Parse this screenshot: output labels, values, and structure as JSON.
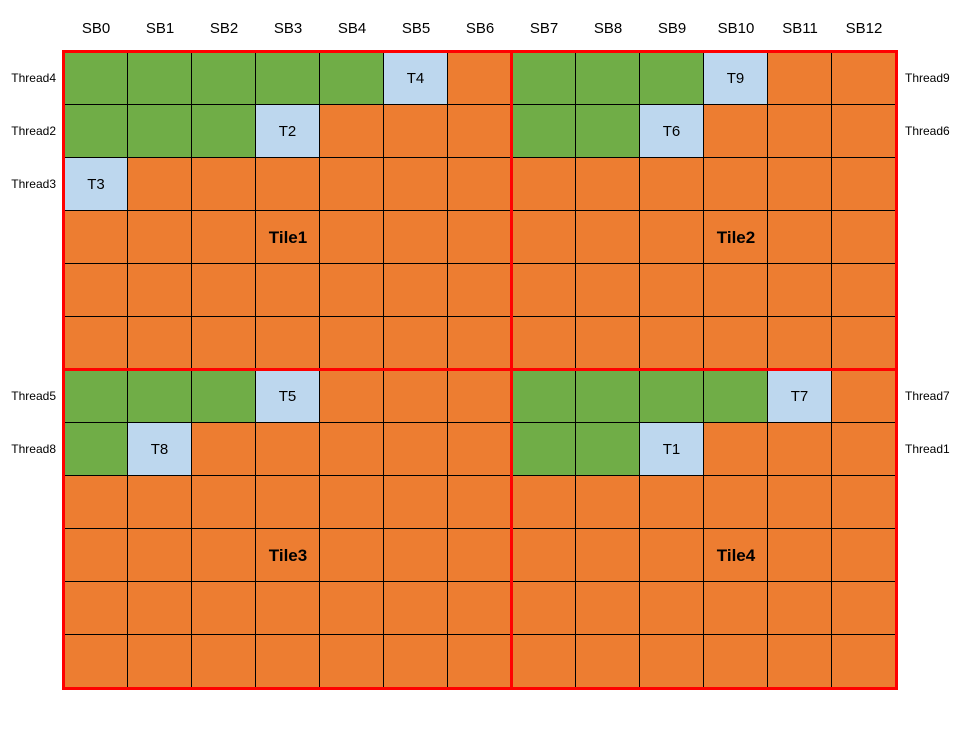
{
  "diagram": {
    "title": "thread-tile-superblock-assignment",
    "column_headers": [
      "SB0",
      "SB1",
      "SB2",
      "SB3",
      "SB4",
      "SB5",
      "SB6",
      "SB7",
      "SB8",
      "SB9",
      "SB10",
      "SB11",
      "SB12"
    ],
    "row_labels_left": [
      "Thread4",
      "Thread2",
      "Thread3",
      "",
      "",
      "",
      "Thread5",
      "Thread8",
      "",
      "",
      "",
      ""
    ],
    "row_labels_right": [
      "Thread9",
      "Thread6",
      "",
      "",
      "",
      "",
      "Thread7",
      "Thread1",
      "",
      "",
      "",
      ""
    ],
    "cells": [
      [
        "g",
        "g",
        "g",
        "g",
        "g",
        "b:T4",
        "o",
        "g",
        "g",
        "g",
        "b:T9",
        "o",
        "o"
      ],
      [
        "g",
        "g",
        "g",
        "b:T2",
        "o",
        "o",
        "o",
        "g",
        "g",
        "b:T6",
        "o",
        "o",
        "o"
      ],
      [
        "b:T3",
        "o",
        "o",
        "o",
        "o",
        "o",
        "o",
        "o",
        "o",
        "o",
        "o",
        "o",
        "o"
      ],
      [
        "o",
        "o",
        "o",
        "o",
        "o",
        "o",
        "o",
        "o",
        "o",
        "o",
        "o",
        "o",
        "o"
      ],
      [
        "o",
        "o",
        "o",
        "o",
        "o",
        "o",
        "o",
        "o",
        "o",
        "o",
        "o",
        "o",
        "o"
      ],
      [
        "o",
        "o",
        "o",
        "o",
        "o",
        "o",
        "o",
        "o",
        "o",
        "o",
        "o",
        "o",
        "o"
      ],
      [
        "g",
        "g",
        "g",
        "b:T5",
        "o",
        "o",
        "o",
        "g",
        "g",
        "g",
        "g",
        "b:T7",
        "o"
      ],
      [
        "g",
        "b:T8",
        "o",
        "o",
        "o",
        "o",
        "o",
        "g",
        "g",
        "b:T1",
        "o",
        "o",
        "o"
      ],
      [
        "o",
        "o",
        "o",
        "o",
        "o",
        "o",
        "o",
        "o",
        "o",
        "o",
        "o",
        "o",
        "o"
      ],
      [
        "o",
        "o",
        "o",
        "o",
        "o",
        "o",
        "o",
        "o",
        "o",
        "o",
        "o",
        "o",
        "o"
      ],
      [
        "o",
        "o",
        "o",
        "o",
        "o",
        "o",
        "o",
        "o",
        "o",
        "o",
        "o",
        "o",
        "o"
      ],
      [
        "o",
        "o",
        "o",
        "o",
        "o",
        "o",
        "o",
        "o",
        "o",
        "o",
        "o",
        "o",
        "o"
      ]
    ],
    "tile_labels": [
      {
        "label": "Tile1",
        "row": 3,
        "col": 3
      },
      {
        "label": "Tile2",
        "row": 3,
        "col": 10
      },
      {
        "label": "Tile3",
        "row": 9,
        "col": 3
      },
      {
        "label": "Tile4",
        "row": 9,
        "col": 10
      }
    ],
    "colors": {
      "green": "#70AD47",
      "orange": "#ED7D31",
      "blue": "#BDD7EE",
      "red": "#FF0000",
      "grid_line": "#000000"
    }
  }
}
